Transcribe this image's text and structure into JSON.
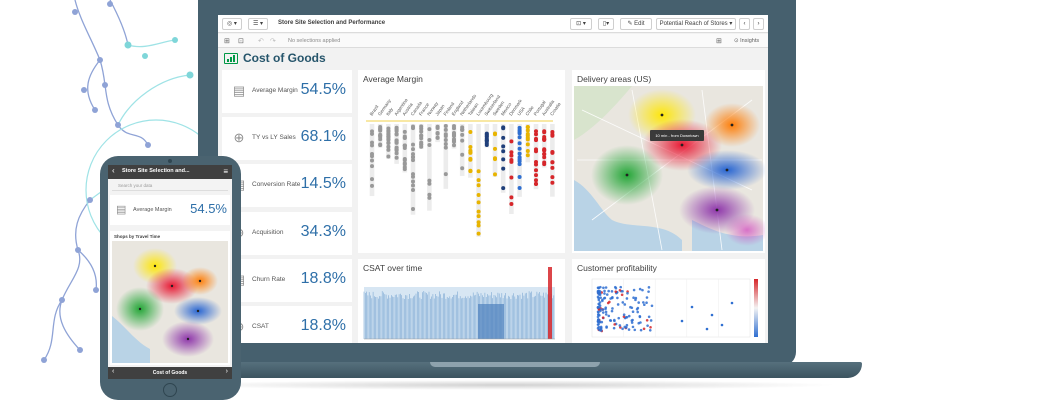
{
  "app": {
    "title": "Store Site Selection and Performance",
    "edit_label": "Edit",
    "sheet_selector": "Potential Reach of Stores",
    "insights_label": "Insights",
    "selection_status": "No selections applied"
  },
  "sheet": {
    "title": "Cost of Goods"
  },
  "kpis": [
    {
      "label": "Average Margin",
      "value": "54.5%",
      "icon": "stack-icon"
    },
    {
      "label": "TY vs LY Sales",
      "value": "68.1%",
      "icon": "target-icon"
    },
    {
      "label": "Conversion Rate",
      "value": "14.5%",
      "icon": "stack-icon"
    },
    {
      "label": "Acquisition",
      "value": "34.3%",
      "icon": "target-icon"
    },
    {
      "label": "Churn Rate",
      "value": "18.8%",
      "icon": "stack-icon"
    },
    {
      "label": "CSAT",
      "value": "18.8%",
      "icon": "target-icon"
    }
  ],
  "panels": {
    "average_margin": "Average Margin",
    "delivery": "Delivery areas (US)",
    "csat": "CSAT over time",
    "profitability": "Customer profitability"
  },
  "tooltip": "10 min - from Downtown",
  "phone": {
    "title": "Store Site Selection and...",
    "search_placeholder": "Search your data",
    "kpi_label": "Average Margin",
    "kpi_value": "54.5%",
    "map_title": "Shops by Travel Time",
    "footer_title": "Cost of Goods"
  },
  "colors": {
    "accent_green": "#009845",
    "title_blue": "#26556b",
    "kpi_blue": "#2e6fa8",
    "device_frame": "#46606e"
  },
  "chart_data": [
    {
      "type": "scatter",
      "title": "Average Margin",
      "categories": [
        "Brazil",
        "Germany",
        "Italy",
        "Argentina",
        "Austria",
        "Canada",
        "France",
        "Norway",
        "Japan",
        "Finland",
        "England",
        "Netherlands",
        "Taiwan",
        "Luxembourg",
        "Switzerland",
        "Sweden",
        "Mexico",
        "Denmark",
        "USA",
        "Chile",
        "Portugal",
        "Australia",
        "Croatia"
      ]
    },
    {
      "type": "line",
      "title": "CSAT over time"
    },
    {
      "type": "scatter",
      "title": "Customer profitability"
    }
  ]
}
